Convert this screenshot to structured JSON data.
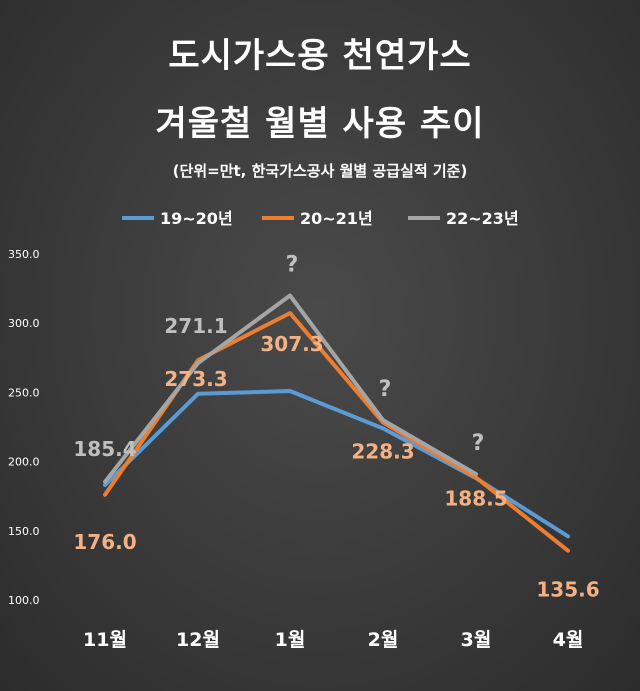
{
  "chart_data": {
    "type": "line",
    "title": "도시가스용 천연가스",
    "title2": "겨울철 월별 사용 추이",
    "subtitle": "(단위=만t, 한국가스공사 월별 공급실적 기준)",
    "categories": [
      "11월",
      "12월",
      "1월",
      "2월",
      "3월",
      "4월"
    ],
    "ylim": [
      100,
      350
    ],
    "yticks": [
      "100.0",
      "150.0",
      "200.0",
      "250.0",
      "300.0",
      "350.0"
    ],
    "grid": false,
    "legend": "top",
    "series": [
      {
        "name": "19~20년",
        "color": "#5b9bd5",
        "values": [
          183,
          249,
          251,
          224,
          188,
          146
        ]
      },
      {
        "name": "20~21년",
        "color": "#ed7d31",
        "values": [
          176.0,
          273.3,
          307.3,
          228.3,
          188.5,
          135.6
        ]
      },
      {
        "name": "22~23년",
        "color": "#a5a5a5",
        "values": [
          185.4,
          271.1,
          320,
          230,
          191,
          null
        ]
      }
    ],
    "data_labels": [
      {
        "series": 2,
        "index": 0,
        "text": "185.4",
        "color": "#bfbfbf"
      },
      {
        "series": 2,
        "index": 1,
        "text": "271.1",
        "color": "#bfbfbf"
      },
      {
        "series": 1,
        "index": 0,
        "text": "176.0",
        "color": "#f4b183"
      },
      {
        "series": 1,
        "index": 1,
        "text": "273.3",
        "color": "#f4b183"
      },
      {
        "series": 1,
        "index": 2,
        "text": "307.3",
        "color": "#f4b183"
      },
      {
        "series": 1,
        "index": 3,
        "text": "228.3",
        "color": "#f4b183"
      },
      {
        "series": 1,
        "index": 4,
        "text": "188.5",
        "color": "#f4b183"
      },
      {
        "series": 1,
        "index": 5,
        "text": "135.6",
        "color": "#f4b183"
      }
    ],
    "annotations": [
      {
        "index": 2,
        "text": "?"
      },
      {
        "index": 3,
        "text": "?"
      },
      {
        "index": 4,
        "text": "?"
      }
    ]
  }
}
